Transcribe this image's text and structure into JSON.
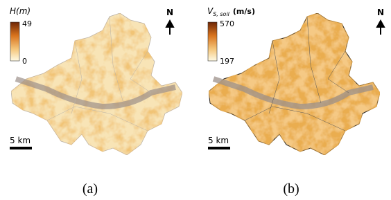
{
  "panels": [
    {
      "legend_title": {
        "symbol": "H(m)"
      },
      "legend_max": 49,
      "legend_min": 0,
      "north": "N",
      "scale": "5 km",
      "caption": "(a)"
    },
    {
      "legend_title": {
        "symbol": "V",
        "subscript": "S, soil",
        "unit": "(m/s)"
      },
      "legend_max": 570,
      "legend_min": 197,
      "north": "N",
      "scale": "5 km",
      "caption": "(b)"
    }
  ]
}
